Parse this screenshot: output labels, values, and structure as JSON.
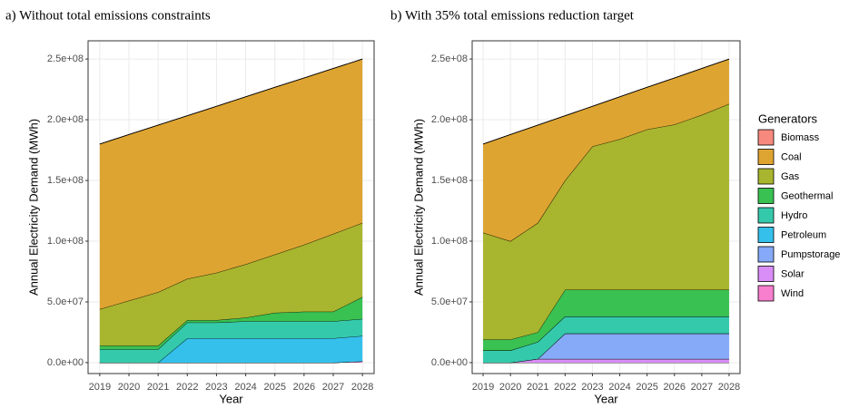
{
  "chart_data": [
    {
      "type": "area",
      "title": "a) Without total emissions constraints",
      "xlabel": "Year",
      "ylabel": "Annual Electricity Demand (MWh)",
      "x": [
        2019,
        2020,
        2021,
        2022,
        2023,
        2024,
        2025,
        2026,
        2027,
        2028
      ],
      "xlim": [
        2018.6,
        2028.4
      ],
      "xticks": [
        2019,
        2020,
        2021,
        2022,
        2023,
        2024,
        2025,
        2026,
        2027,
        2028
      ],
      "ylim": [
        -9000000,
        265000000
      ],
      "yticks": [
        {
          "value": 0,
          "label": "0.0e+00"
        },
        {
          "value": 50000000,
          "label": "5.0e+07"
        },
        {
          "value": 100000000,
          "label": "1.0e+08"
        },
        {
          "value": 150000000,
          "label": "1.5e+08"
        },
        {
          "value": 200000000,
          "label": "2.0e+08"
        },
        {
          "value": 250000000,
          "label": "2.5e+08"
        }
      ],
      "grid": true,
      "stacked": true,
      "series": [
        {
          "name": "Biomass",
          "color": "#f7897f",
          "values": [
            0,
            0,
            0,
            0,
            0,
            0,
            0,
            0,
            0,
            0
          ]
        },
        {
          "name": "Coal",
          "color": "#dea431",
          "values": [
            136000000,
            136800000,
            137600000,
            134300000,
            137100000,
            137900000,
            137700000,
            137400000,
            136200000,
            135000000
          ]
        },
        {
          "name": "Gas",
          "color": "#a8b52e",
          "values": [
            30000000,
            37000000,
            44000000,
            34000000,
            39000000,
            44000000,
            48000000,
            55000000,
            64000000,
            61000000
          ]
        },
        {
          "name": "Geothermal",
          "color": "#39c151",
          "values": [
            3000000,
            3000000,
            3000000,
            2000000,
            2000000,
            3000000,
            7000000,
            8000000,
            8000000,
            18000000
          ]
        },
        {
          "name": "Hydro",
          "color": "#35c9ab",
          "values": [
            11000000,
            11000000,
            11000000,
            13000000,
            13000000,
            14000000,
            14000000,
            14000000,
            14000000,
            14000000
          ]
        },
        {
          "name": "Petroleum",
          "color": "#35c0ec",
          "values": [
            0,
            0,
            0,
            20000000,
            20000000,
            20000000,
            20000000,
            20000000,
            20000000,
            21000000
          ]
        },
        {
          "name": "Pumpstorage",
          "color": "#86a9f8",
          "values": [
            0,
            0,
            0,
            0,
            0,
            0,
            0,
            0,
            0,
            0
          ]
        },
        {
          "name": "Solar",
          "color": "#d98df7",
          "values": [
            0,
            0,
            0,
            0,
            0,
            0,
            0,
            0,
            0,
            0
          ]
        },
        {
          "name": "Wind",
          "color": "#f77fcd",
          "values": [
            0,
            0,
            0,
            0,
            0,
            0,
            0,
            0,
            0,
            1000000
          ]
        }
      ]
    },
    {
      "type": "area",
      "title": "b) With 35% total emissions reduction target",
      "xlabel": "Year",
      "ylabel": "Annual Electricity Demand (MWh)",
      "x": [
        2019,
        2020,
        2021,
        2022,
        2023,
        2024,
        2025,
        2026,
        2027,
        2028
      ],
      "xlim": [
        2018.6,
        2028.4
      ],
      "xticks": [
        2019,
        2020,
        2021,
        2022,
        2023,
        2024,
        2025,
        2026,
        2027,
        2028
      ],
      "ylim": [
        -9000000,
        265000000
      ],
      "yticks": [
        {
          "value": 0,
          "label": "0.0e+00"
        },
        {
          "value": 50000000,
          "label": "5.0e+07"
        },
        {
          "value": 100000000,
          "label": "1.0e+08"
        },
        {
          "value": 150000000,
          "label": "1.5e+08"
        },
        {
          "value": 200000000,
          "label": "2.0e+08"
        },
        {
          "value": 250000000,
          "label": "2.5e+08"
        }
      ],
      "grid": true,
      "stacked": true,
      "legend_title": "Generators",
      "legend": "right",
      "series": [
        {
          "name": "Biomass",
          "color": "#f7897f",
          "values": [
            0,
            0,
            0,
            0,
            0,
            0,
            0,
            0,
            0,
            0
          ]
        },
        {
          "name": "Coal",
          "color": "#dea431",
          "values": [
            73000000,
            87800000,
            80600000,
            53300000,
            33100000,
            34900000,
            34700000,
            38400000,
            38200000,
            37000000
          ]
        },
        {
          "name": "Gas",
          "color": "#a8b52e",
          "values": [
            88000000,
            81000000,
            90000000,
            90000000,
            118000000,
            124000000,
            132000000,
            136000000,
            144000000,
            153000000
          ]
        },
        {
          "name": "Geothermal",
          "color": "#39c151",
          "values": [
            9000000,
            9000000,
            8000000,
            22000000,
            22000000,
            22000000,
            22000000,
            22000000,
            22000000,
            22000000
          ]
        },
        {
          "name": "Hydro",
          "color": "#35c9ab",
          "values": [
            10000000,
            10000000,
            14000000,
            14000000,
            14000000,
            14000000,
            14000000,
            14000000,
            14000000,
            14000000
          ]
        },
        {
          "name": "Petroleum",
          "color": "#35c0ec",
          "values": [
            0,
            0,
            0,
            0,
            0,
            0,
            0,
            0,
            0,
            0
          ]
        },
        {
          "name": "Pumpstorage",
          "color": "#86a9f8",
          "values": [
            0,
            0,
            0,
            21000000,
            21000000,
            21000000,
            21000000,
            21000000,
            21000000,
            21000000
          ]
        },
        {
          "name": "Solar",
          "color": "#d98df7",
          "values": [
            0,
            0,
            3000000,
            3000000,
            3000000,
            3000000,
            3000000,
            3000000,
            3000000,
            3000000
          ]
        },
        {
          "name": "Wind",
          "color": "#f77fcd",
          "values": [
            0,
            0,
            0,
            0,
            0,
            0,
            0,
            0,
            0,
            0
          ]
        }
      ]
    }
  ]
}
